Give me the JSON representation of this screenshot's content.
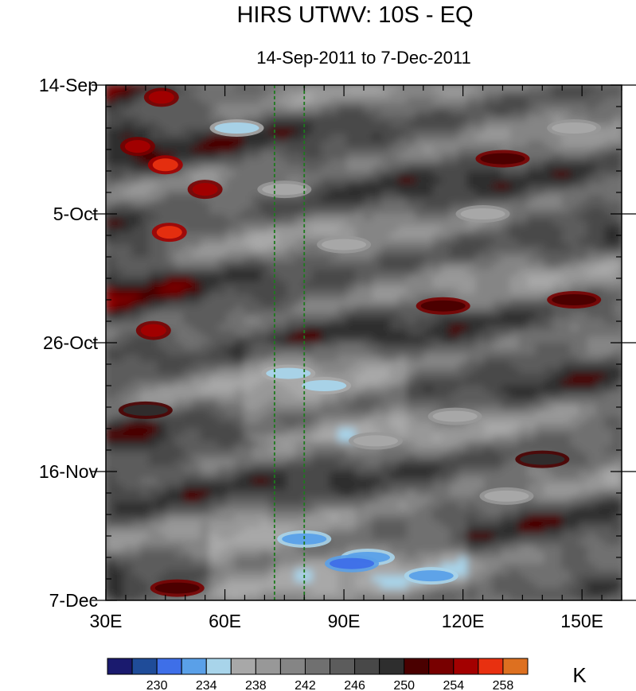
{
  "chart_data": {
    "type": "heatmap",
    "title": "HIRS UTWV: 10S - EQ",
    "subtitle": "14-Sep-2011 to 7-Dec-2011",
    "xlabel": "",
    "ylabel": "",
    "x_range": [
      30,
      160
    ],
    "y_range_days": [
      0,
      84
    ],
    "x_ticks": [
      {
        "value": 30,
        "label": "30E"
      },
      {
        "value": 60,
        "label": "60E"
      },
      {
        "value": 90,
        "label": "90E"
      },
      {
        "value": 120,
        "label": "120E"
      },
      {
        "value": 150,
        "label": "150E"
      }
    ],
    "y_ticks": [
      {
        "day": 0,
        "label": "14-Sep"
      },
      {
        "day": 21,
        "label": "5-Oct"
      },
      {
        "day": 42,
        "label": "26-Oct"
      },
      {
        "day": 63,
        "label": "16-Nov"
      },
      {
        "day": 84,
        "label": "7-Dec"
      }
    ],
    "reference_lines_lon": [
      72.5,
      80
    ],
    "colorbar": {
      "unit": "K",
      "levels": [
        228,
        230,
        232,
        234,
        236,
        238,
        240,
        242,
        244,
        246,
        248,
        250,
        252,
        254,
        256,
        258
      ],
      "labels": [
        {
          "value": 230,
          "label": "230"
        },
        {
          "value": 234,
          "label": "234"
        },
        {
          "value": 238,
          "label": "238"
        },
        {
          "value": 242,
          "label": "242"
        },
        {
          "value": 246,
          "label": "246"
        },
        {
          "value": 250,
          "label": "250"
        },
        {
          "value": 254,
          "label": "254"
        },
        {
          "value": 258,
          "label": "258"
        }
      ],
      "colors": [
        "#1a1a6e",
        "#1f4c99",
        "#3e6fe8",
        "#5aa0e8",
        "#a8d4ea",
        "#a8a8a8",
        "#989898",
        "#858585",
        "#707070",
        "#5c5c5c",
        "#484848",
        "#2e2e2e",
        "#4a0000",
        "#780000",
        "#a30000",
        "#e83010",
        "#dd7020"
      ]
    },
    "features": [
      {
        "lon": 44,
        "day": 2,
        "value": 255
      },
      {
        "lon": 38,
        "day": 10,
        "value": 255
      },
      {
        "lon": 45,
        "day": 13,
        "value": 256
      },
      {
        "lon": 55,
        "day": 17,
        "value": 255
      },
      {
        "lon": 46,
        "day": 24,
        "value": 256
      },
      {
        "lon": 42,
        "day": 40,
        "value": 255
      },
      {
        "lon": 63,
        "day": 7,
        "value": 235
      },
      {
        "lon": 75,
        "day": 17,
        "value": 237
      },
      {
        "lon": 90,
        "day": 26,
        "value": 236
      },
      {
        "lon": 125,
        "day": 21,
        "value": 236
      },
      {
        "lon": 148,
        "day": 7,
        "value": 236
      },
      {
        "lon": 76,
        "day": 47,
        "value": 235
      },
      {
        "lon": 85,
        "day": 49,
        "value": 234
      },
      {
        "lon": 118,
        "day": 54,
        "value": 236
      },
      {
        "lon": 98,
        "day": 58,
        "value": 236
      },
      {
        "lon": 80,
        "day": 74,
        "value": 233
      },
      {
        "lon": 96,
        "day": 77,
        "value": 232
      },
      {
        "lon": 92,
        "day": 78,
        "value": 230
      },
      {
        "lon": 112,
        "day": 80,
        "value": 233
      },
      {
        "lon": 131,
        "day": 67,
        "value": 236
      },
      {
        "lon": 130,
        "day": 12,
        "value": 250
      },
      {
        "lon": 148,
        "day": 35,
        "value": 250
      },
      {
        "lon": 115,
        "day": 36,
        "value": 250
      },
      {
        "lon": 140,
        "day": 61,
        "value": 249
      },
      {
        "lon": 48,
        "day": 82,
        "value": 250
      },
      {
        "lon": 40,
        "day": 53,
        "value": 249
      }
    ]
  }
}
